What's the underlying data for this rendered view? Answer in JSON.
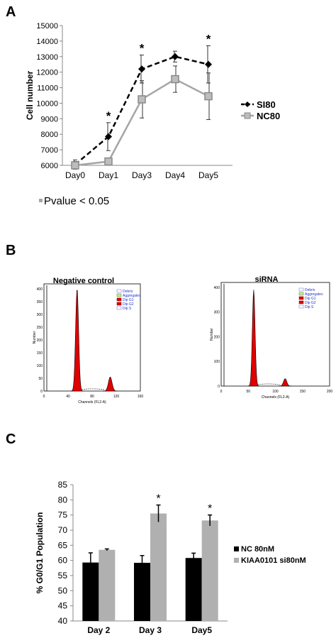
{
  "panels": {
    "a": "A",
    "b": "B",
    "c": "C"
  },
  "chart_data": [
    {
      "type": "line",
      "ylabel": "Cell number",
      "categories": [
        "Day0",
        "Day1",
        "Day3",
        "Day4",
        "Day5"
      ],
      "ylim": [
        6000,
        15000
      ],
      "yticks": [
        6000,
        7000,
        8000,
        9000,
        10000,
        11000,
        12000,
        13000,
        14000,
        15000
      ],
      "grid": false,
      "legend": "right",
      "series": [
        {
          "name": "SI80",
          "values": [
            6050,
            7850,
            12200,
            13000,
            12500
          ],
          "errors": [
            300,
            900,
            900,
            350,
            1200
          ],
          "color": "#000000",
          "dashed": true
        },
        {
          "name": "NC80",
          "values": [
            6000,
            6250,
            10250,
            11550,
            10450
          ],
          "errors": [
            250,
            200,
            1200,
            850,
            1500
          ],
          "color": "#a6a6a6",
          "dashed": false
        }
      ],
      "significance": [
        "",
        "*",
        "*",
        "",
        "*"
      ],
      "annotation": "Pvalue < 0.05"
    },
    {
      "type": "area",
      "plots": [
        {
          "title": "Negative control",
          "ylabel": "Number",
          "xlabel": "Channels (FL2-A)",
          "xticks": [
            0,
            40,
            80,
            120,
            160
          ],
          "yticks": [
            0,
            50,
            100,
            150,
            200,
            250,
            300,
            350,
            400
          ],
          "xlim": [
            0,
            160
          ],
          "ylim": [
            0,
            420
          ],
          "peaks": [
            {
              "label": "G1",
              "center": 55,
              "height": 400,
              "width": 2.5
            },
            {
              "label": "G2",
              "center": 110,
              "height": 55,
              "width": 3
            }
          ],
          "legend": [
            "Debris",
            "Aggregates",
            "Dip G1",
            "Dip G2",
            "Dip S"
          ]
        },
        {
          "title": "siRNA",
          "ylabel": "Number",
          "xlabel": "Channels (FL2-A)",
          "xticks": [
            0,
            50,
            100,
            150,
            200
          ],
          "yticks": [
            0,
            100,
            200,
            300,
            400
          ],
          "xlim": [
            0,
            200
          ],
          "ylim": [
            0,
            420
          ],
          "peaks": [
            {
              "label": "G1",
              "center": 60,
              "height": 390,
              "width": 2.5
            },
            {
              "label": "G2",
              "center": 118,
              "height": 30,
              "width": 3
            }
          ],
          "legend": [
            "Debris",
            "Aggregates",
            "Dip G1",
            "Dip G2",
            "Dip S"
          ]
        }
      ]
    },
    {
      "type": "bar",
      "ylabel": "% G0/G1 Population",
      "categories": [
        "Day 2",
        "Day 3",
        "Day5"
      ],
      "ylim": [
        40,
        85
      ],
      "yticks": [
        40,
        45,
        50,
        55,
        60,
        65,
        70,
        75,
        80,
        85
      ],
      "grid": false,
      "legend": "right",
      "series": [
        {
          "name": "NC 80nM",
          "values": [
            59.3,
            59.2,
            60.8
          ],
          "errors": [
            3.2,
            2.4,
            1.6
          ],
          "color": "#000000"
        },
        {
          "name": "KIAA0101 si80nM",
          "values": [
            63.5,
            75.5,
            73.2
          ],
          "errors": [
            0.3,
            2.8,
            1.8
          ],
          "color": "#b0b0b0"
        }
      ],
      "significance": [
        "",
        "*",
        "*"
      ]
    }
  ],
  "colors": {
    "g1_fill": "#e00000",
    "grey": "#a6a6a6"
  }
}
